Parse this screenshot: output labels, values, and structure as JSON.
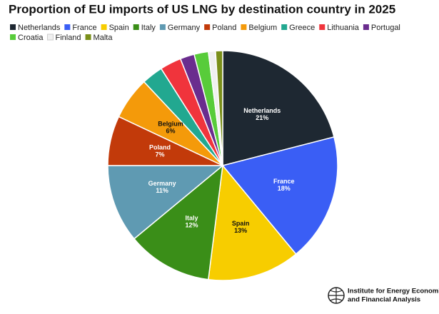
{
  "chart_data": {
    "type": "pie",
    "title": "Proportion of EU imports of US LNG by destination country in 2025",
    "categories": [
      "Netherlands",
      "France",
      "Spain",
      "Italy",
      "Germany",
      "Poland",
      "Belgium",
      "Greece",
      "Lithuania",
      "Portugal",
      "Croatia",
      "Finland",
      "Malta"
    ],
    "values": [
      21,
      18,
      13,
      12,
      11,
      7,
      6,
      3,
      3,
      2,
      2,
      1,
      1
    ],
    "value_labels": [
      "21%",
      "18%",
      "13%",
      "12%",
      "11%",
      "7%",
      "6%",
      null,
      null,
      null,
      null,
      null,
      null
    ],
    "colors": [
      "#1e2832",
      "#3a5ef5",
      "#f7cd00",
      "#3a8e18",
      "#5f9ab2",
      "#c23a0a",
      "#f49a0a",
      "#22a890",
      "#f0343c",
      "#6a2d8e",
      "#58cc3a",
      "#f0f0f0",
      "#7a8f1a"
    ],
    "legend": "top",
    "source": [
      "Institute for Energy Economics",
      "and Financial Analysis"
    ]
  }
}
